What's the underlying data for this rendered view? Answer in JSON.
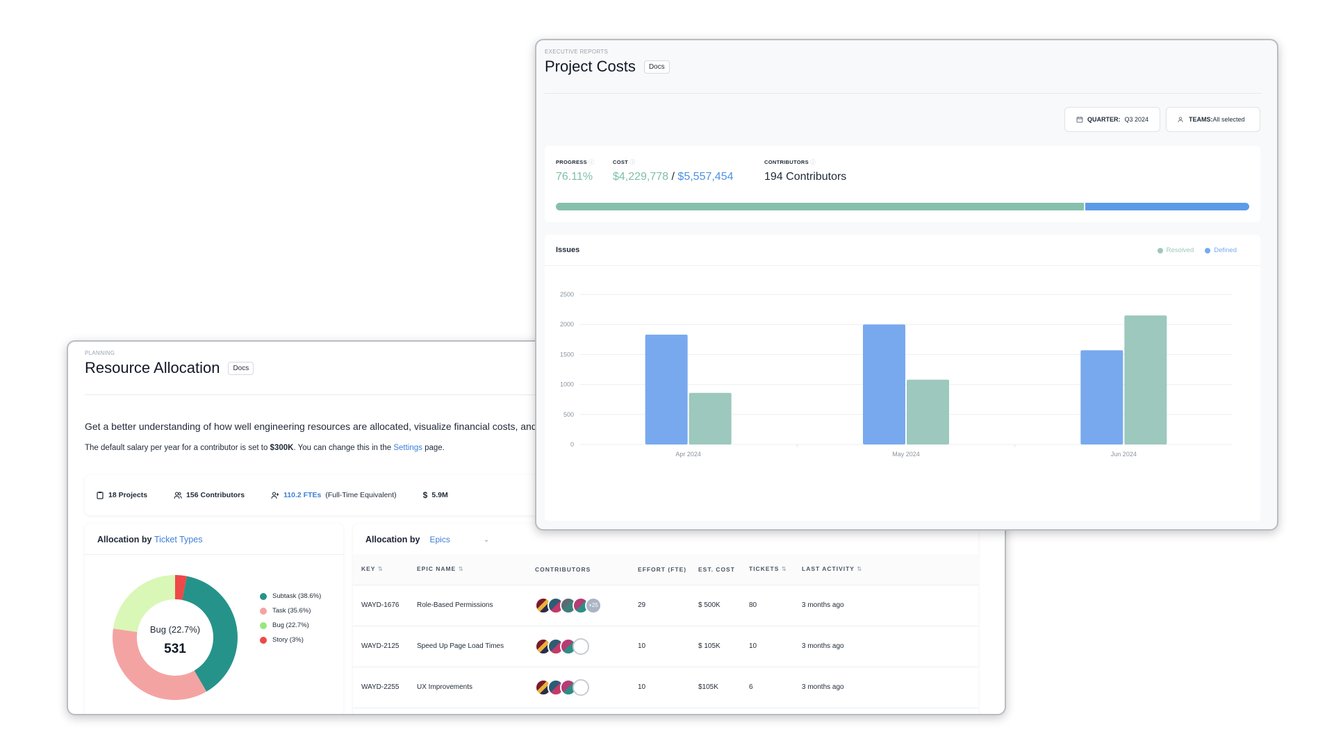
{
  "resource_allocation": {
    "eyebrow": "PLANNING",
    "title": "Resource Allocation",
    "docs_label": "Docs",
    "intro": "Get a better understanding of how well engineering resources are allocated, visualize financial costs, and",
    "salary_prefix": "The default salary per year for a contributor is set to ",
    "salary_value": "$300K",
    "salary_middle": ". You can change this in the ",
    "salary_link": "Settings",
    "salary_suffix": " page.",
    "stats": {
      "projects": "18 Projects",
      "contributors": "156 Contributors",
      "ftes": "110.2 FTEs",
      "ftes_note": "(Full-Time Equivalent)",
      "cost": "5.9M"
    },
    "ticket_card": {
      "title_prefix": "Allocation by",
      "title_link": "Ticket Types",
      "center_label": "Bug (22.7%)",
      "center_value": "531",
      "legend": [
        {
          "label": "Subtask (38.6%)",
          "color": "#26938a",
          "fraction": 0.386
        },
        {
          "label": "Task (35.6%)",
          "color": "#f4a3a3",
          "fraction": 0.356
        },
        {
          "label": "Bug (22.7%)",
          "color": "#d9f7b6",
          "fraction": 0.227
        },
        {
          "label": "Story (3%)",
          "color": "#ee4848",
          "fraction": 0.03
        }
      ]
    },
    "epic_card": {
      "title": "Allocation by",
      "selected": "Epics",
      "columns": [
        "KEY",
        "EPIC NAME",
        "CONTRIBUTORS",
        "EFFORT (FTE)",
        "EST. COST",
        "TICKETS",
        "LAST ACTIVITY"
      ],
      "rows": [
        {
          "key": "WAYD-1676",
          "name": "Role-Based Permissions",
          "more": "+25",
          "effort": "29",
          "cost": "$ 500K",
          "tickets": "80",
          "activity": "3 months ago"
        },
        {
          "key": "WAYD-2125",
          "name": "Speed Up Page Load Times",
          "more": "",
          "effort": "10",
          "cost": "$ 105K",
          "tickets": "10",
          "activity": "3 months ago"
        },
        {
          "key": "WAYD-2255",
          "name": "UX Improvements",
          "more": "",
          "effort": "10",
          "cost": "$105K",
          "tickets": "6",
          "activity": "3 months ago"
        }
      ]
    }
  },
  "project_costs": {
    "eyebrow": "EXECUTIVE REPORTS",
    "title": "Project Costs",
    "docs_label": "Docs",
    "filters": {
      "quarter_label": "QUARTER:",
      "quarter_value": "Q3 2024",
      "teams_label": "TEAMS:",
      "teams_value": "All selected"
    },
    "summary": {
      "progress_label": "PROGRESS",
      "progress_value": "76.11%",
      "progress_fraction": 0.7611,
      "cost_label": "COST",
      "cost_spent": "$4,229,778",
      "cost_sep": " / ",
      "cost_total": "$5,557,454",
      "contributors_label": "CONTRIBUTORS",
      "contributors_value": "194 Contributors"
    },
    "issues": {
      "title": "Issues",
      "legend_resolved": "Resolved",
      "legend_defined": "Defined"
    }
  },
  "colors": {
    "resolved": "#9cc8bd",
    "defined": "#78a9ef",
    "accent_link": "#3d7fd6"
  },
  "chart_data": {
    "type": "bar",
    "title": "Issues",
    "categories": [
      "Apr 2024",
      "May 2024",
      "Jun 2024"
    ],
    "series": [
      {
        "name": "Defined",
        "values": [
          1830,
          2000,
          1570
        ]
      },
      {
        "name": "Resolved",
        "values": [
          860,
          1080,
          2150
        ]
      }
    ],
    "yticks": [
      0,
      500,
      1000,
      1500,
      2000,
      2500
    ],
    "ylim": [
      0,
      2500
    ],
    "grid": true,
    "legend": "top-right"
  }
}
